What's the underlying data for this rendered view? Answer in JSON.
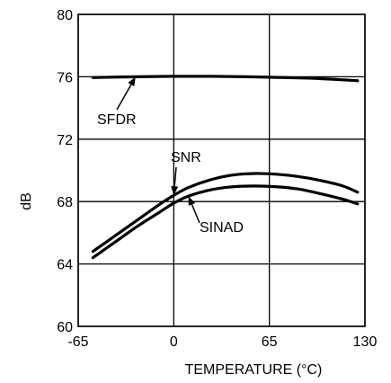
{
  "chart_data": {
    "type": "line",
    "xlabel": "TEMPERATURE (°C)",
    "ylabel": "dB",
    "xlim": [
      -65,
      130
    ],
    "ylim": [
      60,
      80
    ],
    "x_ticks": [
      -65,
      0,
      65,
      130
    ],
    "y_ticks": [
      60,
      64,
      68,
      72,
      76,
      80
    ],
    "grid": true,
    "series": [
      {
        "name": "SFDR",
        "x": [
          -55,
          -40,
          -25,
          0,
          25,
          50,
          75,
          100,
          125
        ],
        "y": [
          75.95,
          75.98,
          76.0,
          76.03,
          76.03,
          76.0,
          75.95,
          75.88,
          75.75
        ]
      },
      {
        "name": "SNR",
        "x": [
          -55,
          -40,
          -25,
          -10,
          0,
          10,
          25,
          40,
          55,
          70,
          85,
          100,
          115,
          125
        ],
        "y": [
          64.8,
          65.8,
          66.8,
          67.8,
          68.4,
          68.9,
          69.4,
          69.7,
          69.8,
          69.75,
          69.6,
          69.35,
          69.0,
          68.6
        ]
      },
      {
        "name": "SINAD",
        "x": [
          -55,
          -40,
          -25,
          -10,
          0,
          10,
          25,
          40,
          55,
          70,
          85,
          100,
          115,
          125
        ],
        "y": [
          64.4,
          65.4,
          66.4,
          67.3,
          67.9,
          68.35,
          68.75,
          68.95,
          69.0,
          68.95,
          68.8,
          68.5,
          68.15,
          67.85
        ]
      }
    ],
    "annotations": [
      {
        "text": "SFDR",
        "points_to_x": -26,
        "points_to_y": 76.0
      },
      {
        "text": "SNR",
        "points_to_x": 0,
        "points_to_y": 68.4
      },
      {
        "text": "SINAD",
        "points_to_x": 10,
        "points_to_y": 68.35
      }
    ]
  }
}
